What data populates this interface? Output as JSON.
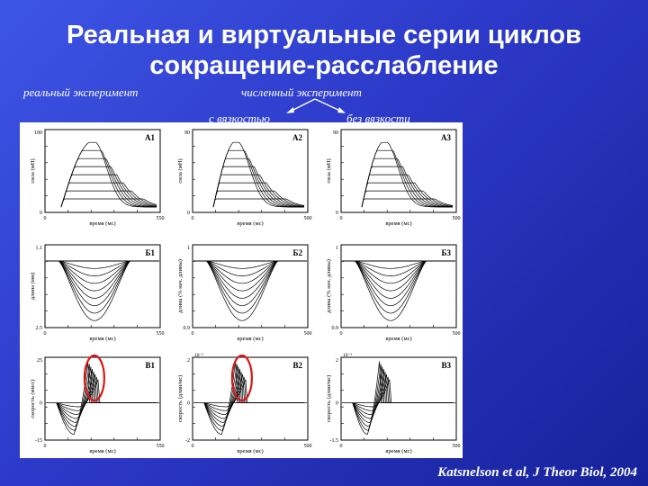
{
  "slide": {
    "title_line1": "Реальная и виртуальные серии циклов",
    "title_line2": "сокращение-расслабление",
    "label_real": "реальный эксперимент",
    "label_numeric": "численный эксперимент",
    "label_visc": "с вязкостью",
    "label_novisc": "без вязкости",
    "citation": "Katsnelson et al, J Theor Biol, 2004"
  },
  "figure": {
    "panels": [
      {
        "id": "А1",
        "ylabel": "сила (мН)",
        "xlabel": "время (мс)",
        "yticks": [
          "100",
          "0"
        ],
        "xticks": [
          "0",
          "550"
        ],
        "kind": "force"
      },
      {
        "id": "А2",
        "ylabel": "сила (мН)",
        "xlabel": "время (мс)",
        "yticks": [
          "90",
          "0"
        ],
        "xticks": [
          "0",
          "500"
        ],
        "kind": "force"
      },
      {
        "id": "А3",
        "ylabel": "сила (мН)",
        "xlabel": "время (мс)",
        "yticks": [
          "90",
          "0"
        ],
        "xticks": [
          "0",
          "500"
        ],
        "kind": "force"
      },
      {
        "id": "Б1",
        "ylabel": "длина (мм)",
        "xlabel": "время (мс)",
        "yticks": [
          "1.1",
          "2.5"
        ],
        "xticks": [
          "0",
          "550"
        ],
        "kind": "length"
      },
      {
        "id": "Б2",
        "ylabel": "длина (% нач. длины)",
        "xlabel": "время (мс)",
        "yticks": [
          "1",
          "0.9"
        ],
        "xticks": [
          "0",
          "500"
        ],
        "kind": "length"
      },
      {
        "id": "Б3",
        "ylabel": "длина (% нач. длины)",
        "xlabel": "время (мс)",
        "yticks": [
          "1",
          "0.9"
        ],
        "xticks": [
          "0",
          "500"
        ],
        "kind": "length"
      },
      {
        "id": "В1",
        "ylabel": "скорость (мм/с)",
        "xlabel": "время (мс)",
        "yticks": [
          "25",
          "0",
          "-15"
        ],
        "xticks": [
          "0",
          "550"
        ],
        "kind": "velocity",
        "exp": ""
      },
      {
        "id": "В2",
        "ylabel": "скорость (длин/мс)",
        "xlabel": "время (мс)",
        "yticks": [
          "2",
          "0",
          "-2"
        ],
        "xticks": [
          "0",
          "500"
        ],
        "kind": "velocity",
        "exp": "10⁻³"
      },
      {
        "id": "В3",
        "ylabel": "скорость (длин/мс)",
        "xlabel": "время (мс)",
        "yticks": [
          "2",
          "0",
          "-1.5"
        ],
        "xticks": [
          "0",
          "500"
        ],
        "kind": "velocity",
        "exp": "10⁻³"
      }
    ],
    "highlight_color": "#d81818"
  }
}
